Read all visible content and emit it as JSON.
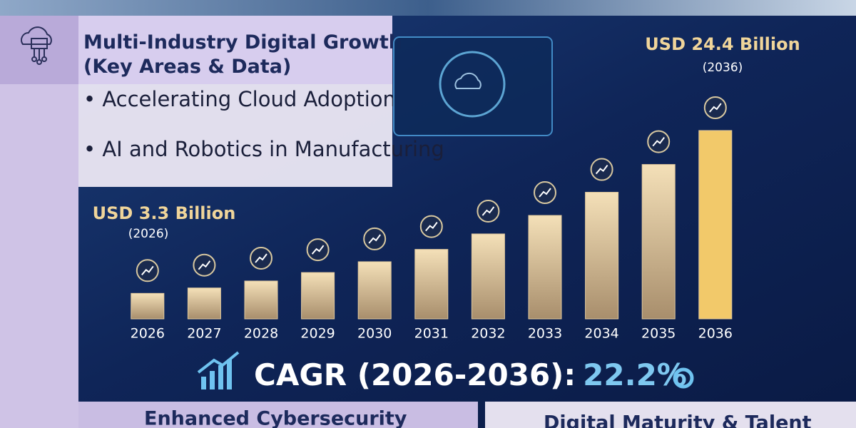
{
  "chart_data": {
    "type": "bar",
    "title": "Multi-Industry Digital Growth (Key Areas & Data)",
    "categories": [
      "2026",
      "2027",
      "2028",
      "2029",
      "2030",
      "2031",
      "2032",
      "2033",
      "2034",
      "2035",
      "2036"
    ],
    "values": [
      3.3,
      4.0,
      4.9,
      6.0,
      7.4,
      9.0,
      11.0,
      13.4,
      16.4,
      20.0,
      24.4
    ],
    "value_labels": [
      "USD 3.3 Billion",
      null,
      null,
      null,
      null,
      null,
      null,
      null,
      null,
      null,
      "USD 24.4 Billion"
    ],
    "annotations": [
      "(2026)",
      "(2036)"
    ],
    "color": "#e2c99c",
    "highlight_color": "#f2c96a"
  },
  "highlights": [
    "Accelerating Cloud Adoption",
    "AI and Robotics in Manufacturing"
  ],
  "cagr": {
    "label": "CAGR (2026-2036):",
    "value": "22.2%"
  },
  "footer": [
    "Enhanced Cybersecurity",
    "Digital Maturity & Talent"
  ]
}
